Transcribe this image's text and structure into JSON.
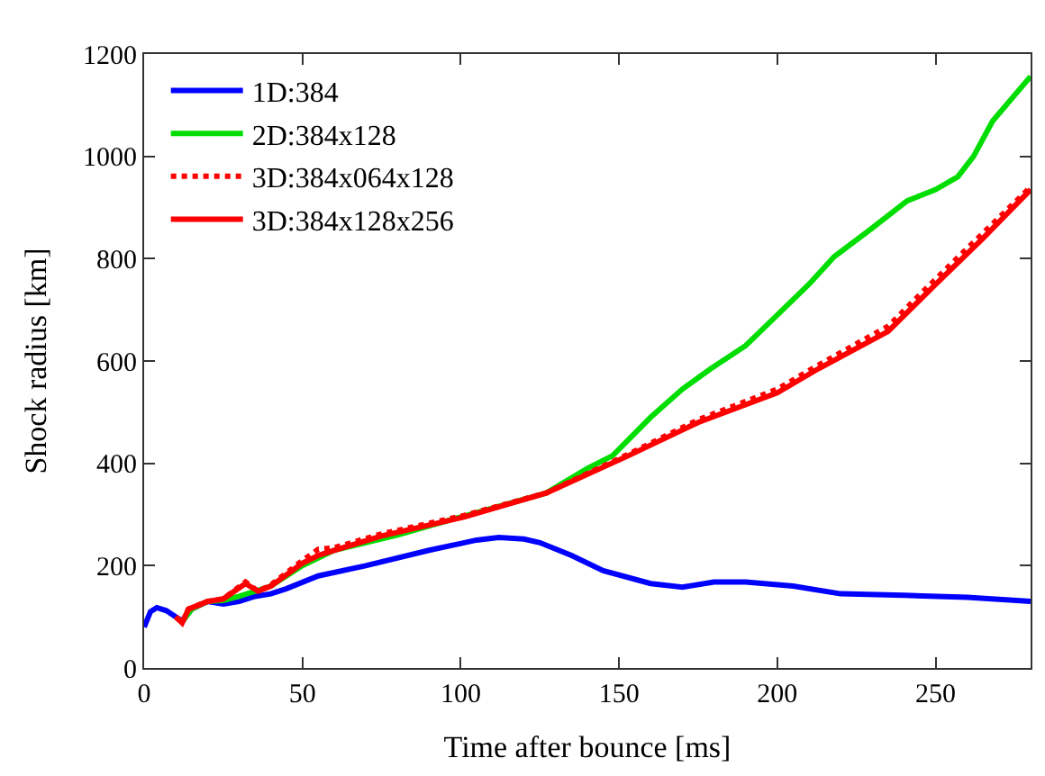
{
  "chart_data": {
    "type": "line",
    "xlabel": "Time after bounce [ms]",
    "ylabel": "Shock radius [km]",
    "xlim": [
      0,
      280
    ],
    "ylim": [
      0,
      1200
    ],
    "xticks": [
      0,
      50,
      100,
      150,
      200,
      250
    ],
    "yticks": [
      0,
      200,
      400,
      600,
      800,
      1000,
      1200
    ],
    "legend": "top left",
    "marker": "none",
    "series": [
      {
        "name": "1D:384",
        "color": "#0000ff",
        "line_style": "solid",
        "x": [
          0,
          2,
          4,
          7,
          10,
          12,
          15,
          20,
          25,
          30,
          35,
          40,
          45,
          55,
          70,
          90,
          105,
          112,
          120,
          125,
          135,
          145,
          160,
          170,
          180,
          190,
          205,
          220,
          240,
          260,
          280
        ],
        "values": [
          80,
          110,
          118,
          112,
          100,
          92,
          115,
          130,
          125,
          130,
          140,
          145,
          155,
          180,
          200,
          230,
          250,
          255,
          252,
          245,
          220,
          190,
          165,
          158,
          168,
          168,
          160,
          145,
          142,
          138,
          130
        ]
      },
      {
        "name": "2D:384x128",
        "color": "#00dd00",
        "line_style": "solid",
        "x": [
          12,
          15,
          20,
          25,
          30,
          35,
          40,
          50,
          60,
          80,
          100,
          127,
          140,
          148,
          160,
          170,
          179,
          190,
          200,
          210,
          218,
          230,
          241,
          250,
          257,
          262,
          268,
          280
        ],
        "values": [
          90,
          115,
          130,
          132,
          140,
          150,
          160,
          200,
          230,
          260,
          295,
          342,
          390,
          415,
          490,
          545,
          585,
          630,
          690,
          750,
          804,
          860,
          913,
          935,
          960,
          1000,
          1069,
          1156
        ]
      },
      {
        "name": "3D:384x064x128",
        "color": "#ff0000",
        "line_style": "dotted",
        "x": [
          10,
          12,
          14,
          20,
          25,
          32,
          36,
          40,
          50,
          55,
          60,
          75,
          101,
          127,
          153,
          175,
          200,
          213,
          235,
          250,
          265,
          280
        ],
        "values": [
          100,
          88,
          115,
          130,
          135,
          168,
          150,
          162,
          210,
          232,
          235,
          262,
          298,
          342,
          418,
          485,
          545,
          592,
          668,
          760,
          850,
          940
        ]
      },
      {
        "name": "3D:384x128x256",
        "color": "#ff0000",
        "line_style": "solid",
        "x": [
          10,
          12,
          14,
          20,
          25,
          32,
          36,
          40,
          50,
          55,
          60,
          75,
          101,
          127,
          153,
          175,
          200,
          213,
          235,
          250,
          265,
          280
        ],
        "values": [
          100,
          88,
          115,
          130,
          135,
          165,
          150,
          160,
          205,
          220,
          230,
          258,
          295,
          342,
          415,
          480,
          538,
          585,
          658,
          750,
          840,
          935
        ]
      }
    ]
  }
}
